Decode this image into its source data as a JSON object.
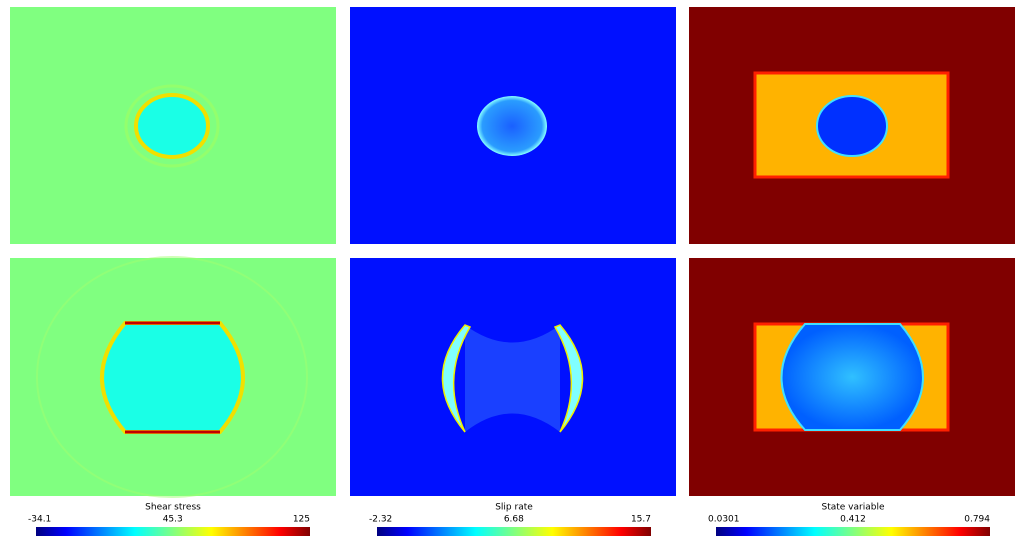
{
  "colorbars": [
    {
      "title": "Shear stress",
      "ticks": [
        -34.1,
        45.3,
        125
      ]
    },
    {
      "title": "Slip rate",
      "ticks": [
        -2.32,
        6.68,
        15.7
      ]
    },
    {
      "title": "State variable",
      "ticks": [
        0.0301,
        0.412,
        0.794
      ]
    }
  ]
}
